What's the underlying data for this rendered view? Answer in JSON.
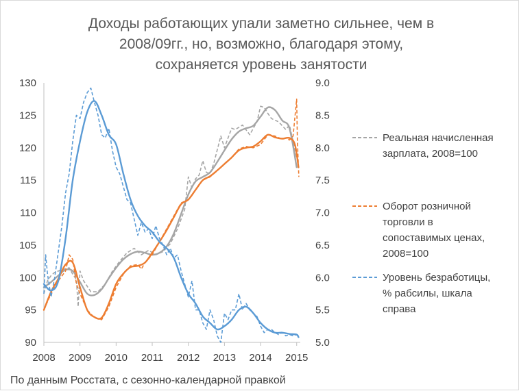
{
  "chart_data": {
    "type": "line",
    "title_lines": [
      "Доходы работающих упали заметно сильнее, чем в",
      "2008/09гг., но, возможно, благодаря этому,",
      "сохраняется уровень занятости"
    ],
    "x_ticks": [
      "2008",
      "2009",
      "2010",
      "2011",
      "2012",
      "2013",
      "2014",
      "2015"
    ],
    "xlim": [
      2008.0,
      2015.1
    ],
    "y_left": {
      "ticks": [
        "90",
        "95",
        "100",
        "105",
        "110",
        "115",
        "120",
        "125",
        "130"
      ],
      "ylim": [
        90,
        130
      ]
    },
    "y_right": {
      "ticks": [
        "5.0",
        "5.5",
        "6.0",
        "6.5",
        "7.0",
        "7.5",
        "8.0",
        "8.5",
        "9.0"
      ],
      "ylim": [
        5.0,
        9.0
      ]
    },
    "grid": false,
    "legend_position": "right",
    "series": [
      {
        "name": "Реальная начисленная зарплата, 2008=100",
        "legend_lines": [
          "Реальная начисленная",
          "зарплата, 2008=100"
        ],
        "color": "#a5a5a5",
        "axis": "left",
        "raw": {
          "x": [
            2008.0,
            2008.1,
            2008.2,
            2008.3,
            2008.5,
            2008.7,
            2008.8,
            2008.9,
            2008.95,
            2009.0,
            2009.1,
            2009.3,
            2009.5,
            2009.7,
            2009.9,
            2010.1,
            2010.3,
            2010.5,
            2010.7,
            2010.9,
            2011.1,
            2011.3,
            2011.5,
            2011.7,
            2011.9,
            2012.0,
            2012.1,
            2012.2,
            2012.3,
            2012.4,
            2012.5,
            2012.6,
            2012.7,
            2012.9,
            2013.0,
            2013.1,
            2013.2,
            2013.3,
            2013.5,
            2013.7,
            2013.8,
            2013.9,
            2014.0,
            2014.1,
            2014.2,
            2014.3,
            2014.5,
            2014.7,
            2014.8,
            2014.9,
            2015.0
          ],
          "y": [
            97.5,
            99.5,
            100.3,
            100.8,
            101.2,
            101.5,
            100.5,
            99.7,
            95.5,
            101.0,
            99.5,
            97.8,
            97.8,
            99.0,
            101.0,
            102.5,
            103.8,
            104.5,
            103.5,
            104.2,
            103.5,
            104.0,
            105.2,
            107.5,
            110.5,
            115.5,
            113.8,
            115.2,
            115.8,
            118.0,
            116.2,
            116.0,
            117.5,
            121.8,
            120.0,
            121.5,
            123.0,
            122.8,
            123.5,
            122.0,
            123.0,
            124.0,
            126.4,
            126.2,
            125.3,
            124.5,
            124.0,
            122.8,
            123.5,
            121.0,
            118.5
          ]
        },
        "smooth": {
          "x": [
            2008.0,
            2008.2,
            2008.4,
            2008.6,
            2008.8,
            2009.0,
            2009.2,
            2009.4,
            2009.6,
            2009.8,
            2010.0,
            2010.2,
            2010.4,
            2010.6,
            2010.8,
            2011.0,
            2011.2,
            2011.4,
            2011.6,
            2011.8,
            2012.0,
            2012.2,
            2012.4,
            2012.6,
            2012.8,
            2013.0,
            2013.2,
            2013.4,
            2013.6,
            2013.8,
            2014.0,
            2014.2,
            2014.4,
            2014.6,
            2014.8,
            2015.0
          ],
          "y": [
            98.5,
            99.3,
            100.3,
            101.2,
            101.0,
            99.3,
            97.5,
            97.3,
            98.2,
            99.9,
            101.5,
            102.8,
            103.6,
            104.0,
            103.8,
            103.5,
            103.8,
            104.8,
            106.8,
            109.8,
            112.8,
            114.8,
            115.5,
            116.2,
            117.8,
            119.6,
            121.3,
            122.5,
            123.0,
            123.4,
            124.8,
            126.2,
            125.8,
            124.2,
            123.0,
            117.0
          ]
        }
      },
      {
        "name": "Оборот розничной торговли в сопоставимых ценах, 2008=100",
        "legend_lines": [
          "Оборот розничной",
          "торговли в",
          "сопоставимых ценах,",
          "2008=100"
        ],
        "color": "#ed7d31",
        "axis": "left",
        "raw": {
          "x": [
            2008.0,
            2008.2,
            2008.4,
            2008.6,
            2008.7,
            2008.8,
            2008.9,
            2009.0,
            2009.2,
            2009.4,
            2009.6,
            2009.8,
            2010.0,
            2010.2,
            2010.4,
            2010.6,
            2010.7,
            2010.8,
            2011.0,
            2011.2,
            2011.4,
            2011.6,
            2011.8,
            2012.0,
            2012.2,
            2012.4,
            2012.6,
            2012.8,
            2013.0,
            2013.2,
            2013.4,
            2013.6,
            2013.8,
            2014.0,
            2014.2,
            2014.4,
            2014.6,
            2014.7,
            2014.8,
            2014.9,
            2015.0,
            2015.02,
            2015.06
          ],
          "y": [
            95.0,
            97.5,
            99.5,
            101.0,
            103.5,
            102.8,
            99.0,
            97.5,
            95.0,
            93.8,
            93.5,
            95.5,
            98.5,
            100.5,
            101.8,
            102.0,
            101.3,
            102.3,
            103.5,
            105.5,
            107.5,
            109.5,
            111.5,
            112.0,
            113.5,
            115.0,
            115.5,
            116.5,
            117.5,
            118.5,
            119.8,
            120.2,
            120.0,
            120.5,
            122.0,
            121.8,
            121.3,
            121.5,
            121.2,
            121.8,
            127.5,
            121.0,
            115.5
          ]
        },
        "smooth": {
          "x": [
            2008.0,
            2008.2,
            2008.4,
            2008.6,
            2008.8,
            2009.0,
            2009.2,
            2009.4,
            2009.6,
            2009.8,
            2010.0,
            2010.2,
            2010.4,
            2010.6,
            2010.8,
            2011.0,
            2011.2,
            2011.4,
            2011.6,
            2011.8,
            2012.0,
            2012.2,
            2012.4,
            2012.6,
            2012.8,
            2013.0,
            2013.2,
            2013.4,
            2013.6,
            2013.8,
            2014.0,
            2014.2,
            2014.4,
            2014.6,
            2014.8,
            2014.95,
            2015.05
          ],
          "y": [
            95.0,
            97.8,
            99.8,
            102.0,
            102.3,
            98.5,
            95.0,
            93.9,
            93.8,
            96.0,
            99.0,
            100.6,
            101.6,
            101.8,
            102.3,
            103.8,
            105.5,
            107.3,
            109.3,
            111.3,
            112.0,
            113.5,
            115.0,
            115.6,
            116.5,
            117.5,
            118.5,
            119.6,
            120.0,
            120.2,
            121.0,
            122.0,
            121.6,
            121.4,
            121.5,
            120.5,
            117.0
          ]
        }
      },
      {
        "name": "Уровень безработицы, % рабсилы, шкала справа",
        "legend_lines": [
          "Уровень безработицы,",
          "% рабсилы, шкала",
          "справа"
        ],
        "color": "#5b9bd5",
        "axis": "right",
        "raw": {
          "x": [
            2008.0,
            2008.05,
            2008.1,
            2008.2,
            2008.3,
            2008.4,
            2008.5,
            2008.6,
            2008.7,
            2008.8,
            2008.9,
            2009.0,
            2009.1,
            2009.2,
            2009.3,
            2009.4,
            2009.5,
            2009.6,
            2009.7,
            2009.8,
            2009.9,
            2010.0,
            2010.1,
            2010.2,
            2010.3,
            2010.4,
            2010.5,
            2010.6,
            2010.7,
            2010.8,
            2010.9,
            2011.0,
            2011.1,
            2011.2,
            2011.3,
            2011.4,
            2011.5,
            2011.6,
            2011.7,
            2011.8,
            2011.9,
            2012.0,
            2012.1,
            2012.2,
            2012.3,
            2012.4,
            2012.5,
            2012.6,
            2012.7,
            2012.8,
            2012.9,
            2013.0,
            2013.1,
            2013.2,
            2013.3,
            2013.4,
            2013.5,
            2013.6,
            2013.7,
            2013.8,
            2013.9,
            2014.0,
            2014.1,
            2014.2,
            2014.3,
            2014.4,
            2014.5,
            2014.6,
            2014.7,
            2014.8,
            2014.9,
            2015.0,
            2015.05
          ],
          "y": [
            5.75,
            6.35,
            6.05,
            5.7,
            6.0,
            6.4,
            6.8,
            7.3,
            7.6,
            8.1,
            8.5,
            8.45,
            8.7,
            8.85,
            8.92,
            8.7,
            8.5,
            8.2,
            8.15,
            8.3,
            7.95,
            7.7,
            7.6,
            7.4,
            7.2,
            7.15,
            6.9,
            6.65,
            6.85,
            6.7,
            6.75,
            6.6,
            6.8,
            6.6,
            6.5,
            6.35,
            6.45,
            6.3,
            6.35,
            6.1,
            5.9,
            5.7,
            5.95,
            5.5,
            5.5,
            5.3,
            5.2,
            5.5,
            5.35,
            5.1,
            5.0,
            5.45,
            5.35,
            5.5,
            5.5,
            5.75,
            5.5,
            5.6,
            5.5,
            5.45,
            5.4,
            5.25,
            5.15,
            5.2,
            5.2,
            5.15,
            5.12,
            5.15,
            5.1,
            5.12,
            5.1,
            5.12,
            5.08
          ]
        },
        "smooth": {
          "x": [
            2008.0,
            2008.2,
            2008.4,
            2008.6,
            2008.8,
            2009.0,
            2009.2,
            2009.4,
            2009.6,
            2009.8,
            2010.0,
            2010.2,
            2010.4,
            2010.6,
            2010.8,
            2011.0,
            2011.2,
            2011.4,
            2011.6,
            2011.8,
            2012.0,
            2012.2,
            2012.4,
            2012.6,
            2012.8,
            2013.0,
            2013.2,
            2013.4,
            2013.6,
            2013.8,
            2014.0,
            2014.2,
            2014.4,
            2014.6,
            2014.8,
            2015.0,
            2015.05
          ],
          "y": [
            5.9,
            5.8,
            5.95,
            6.6,
            7.5,
            8.1,
            8.55,
            8.72,
            8.5,
            8.2,
            8.05,
            7.6,
            7.2,
            6.95,
            6.8,
            6.7,
            6.55,
            6.45,
            6.3,
            6.0,
            5.75,
            5.6,
            5.4,
            5.3,
            5.2,
            5.25,
            5.35,
            5.5,
            5.55,
            5.45,
            5.3,
            5.2,
            5.15,
            5.15,
            5.13,
            5.12,
            5.08
          ]
        }
      }
    ],
    "source_note": "По данным Росстата, с сезонно-календарной правкой"
  }
}
